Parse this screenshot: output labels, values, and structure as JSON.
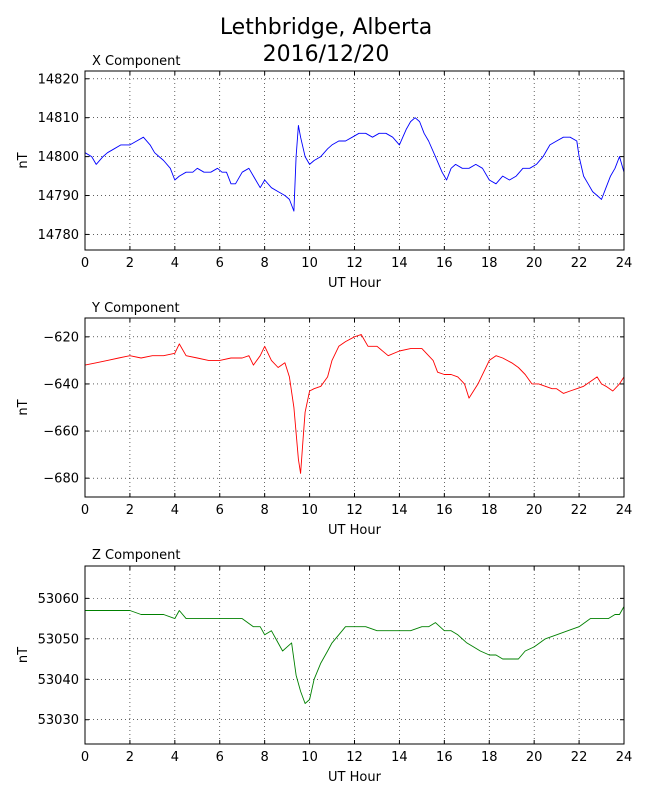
{
  "figure": {
    "title_line1": "Lethbridge, Alberta",
    "title_line2": "2016/12/20"
  },
  "chart_data": [
    {
      "type": "line",
      "title": "X Component",
      "xlabel": "UT Hour",
      "ylabel": "nT",
      "color": "#0000ff",
      "xlim": [
        0,
        24
      ],
      "ylim": [
        14776,
        14822
      ],
      "xticks": [
        0,
        2,
        4,
        6,
        8,
        10,
        12,
        14,
        16,
        18,
        20,
        22,
        24
      ],
      "yticks": [
        14780,
        14790,
        14800,
        14810,
        14820
      ],
      "grid": true,
      "x": [
        0,
        0.3,
        0.5,
        0.8,
        1,
        1.3,
        1.6,
        2,
        2.3,
        2.6,
        2.9,
        3.1,
        3.3,
        3.5,
        3.8,
        4,
        4.2,
        4.5,
        4.8,
        5,
        5.3,
        5.6,
        5.9,
        6.1,
        6.3,
        6.5,
        6.7,
        7,
        7.3,
        7.6,
        7.8,
        8,
        8.3,
        8.6,
        8.9,
        9.1,
        9.3,
        9.4,
        9.5,
        9.6,
        9.8,
        10,
        10.2,
        10.5,
        10.8,
        11,
        11.3,
        11.6,
        11.9,
        12.2,
        12.5,
        12.8,
        13.1,
        13.4,
        13.7,
        14,
        14.3,
        14.5,
        14.7,
        14.9,
        15.1,
        15.3,
        15.6,
        15.9,
        16.1,
        16.3,
        16.5,
        16.8,
        17.1,
        17.4,
        17.7,
        18,
        18.3,
        18.6,
        18.9,
        19.2,
        19.5,
        19.8,
        20.1,
        20.4,
        20.7,
        21,
        21.3,
        21.6,
        21.9,
        22,
        22.2,
        22.4,
        22.6,
        22.8,
        23,
        23.2,
        23.4,
        23.6,
        23.8,
        24
      ],
      "y": [
        14801,
        14800,
        14798,
        14800,
        14801,
        14802,
        14803,
        14803,
        14804,
        14805,
        14803,
        14801,
        14800,
        14799,
        14797,
        14794,
        14795,
        14796,
        14796,
        14797,
        14796,
        14796,
        14797,
        14796,
        14796,
        14793,
        14793,
        14796,
        14797,
        14794,
        14792,
        14794,
        14792,
        14791,
        14790,
        14789,
        14786,
        14800,
        14808,
        14805,
        14800,
        14798,
        14799,
        14800,
        14802,
        14803,
        14804,
        14804,
        14805,
        14806,
        14806,
        14805,
        14806,
        14806,
        14805,
        14803,
        14807,
        14809,
        14810,
        14809,
        14806,
        14804,
        14800,
        14796,
        14794,
        14797,
        14798,
        14797,
        14797,
        14798,
        14797,
        14794,
        14793,
        14795,
        14794,
        14795,
        14797,
        14797,
        14798,
        14800,
        14803,
        14804,
        14805,
        14805,
        14804,
        14800,
        14795,
        14793,
        14791,
        14790,
        14789,
        14792,
        14795,
        14797,
        14800,
        14796
      ]
    },
    {
      "type": "line",
      "title": "Y Component",
      "xlabel": "UT Hour",
      "ylabel": "nT",
      "color": "#ff0000",
      "xlim": [
        0,
        24
      ],
      "ylim": [
        -688,
        -612
      ],
      "xticks": [
        0,
        2,
        4,
        6,
        8,
        10,
        12,
        14,
        16,
        18,
        20,
        22,
        24
      ],
      "yticks": [
        -620,
        -640,
        -660,
        -680
      ],
      "grid": true,
      "x": [
        0,
        0.5,
        1,
        1.5,
        2,
        2.5,
        3,
        3.5,
        4,
        4.2,
        4.5,
        5,
        5.5,
        6,
        6.5,
        7,
        7.3,
        7.5,
        7.8,
        8,
        8.3,
        8.6,
        8.9,
        9.1,
        9.3,
        9.5,
        9.6,
        9.7,
        9.8,
        10,
        10.2,
        10.5,
        10.8,
        11,
        11.3,
        11.6,
        12,
        12.3,
        12.6,
        13,
        13.5,
        14,
        14.5,
        15,
        15.5,
        15.7,
        16,
        16.3,
        16.6,
        16.9,
        17.1,
        17.3,
        17.5,
        17.8,
        18,
        18.3,
        18.6,
        19,
        19.3,
        19.6,
        19.9,
        20.2,
        20.5,
        20.8,
        21,
        21.3,
        21.6,
        21.9,
        22.2,
        22.5,
        22.8,
        23,
        23.2,
        23.5,
        23.8,
        24
      ],
      "y": [
        -632,
        -631,
        -630,
        -629,
        -628,
        -629,
        -628,
        -628,
        -627,
        -623,
        -628,
        -629,
        -630,
        -630,
        -629,
        -629,
        -628,
        -632,
        -628,
        -624,
        -630,
        -633,
        -631,
        -637,
        -650,
        -672,
        -678,
        -665,
        -652,
        -643,
        -642,
        -641,
        -637,
        -630,
        -624,
        -622,
        -620,
        -619,
        -624,
        -624,
        -628,
        -626,
        -625,
        -625,
        -630,
        -635,
        -636,
        -636,
        -637,
        -640,
        -646,
        -643,
        -640,
        -634,
        -630,
        -628,
        -629,
        -631,
        -633,
        -636,
        -640,
        -640,
        -641,
        -642,
        -642,
        -644,
        -643,
        -642,
        -641,
        -639,
        -637,
        -640,
        -641,
        -643,
        -640,
        -637
      ]
    },
    {
      "type": "line",
      "title": "Z Component",
      "xlabel": "UT Hour",
      "ylabel": "nT",
      "color": "#008000",
      "xlim": [
        0,
        24
      ],
      "ylim": [
        53024,
        53068
      ],
      "xticks": [
        0,
        2,
        4,
        6,
        8,
        10,
        12,
        14,
        16,
        18,
        20,
        22,
        24
      ],
      "yticks": [
        53030,
        53040,
        53050,
        53060
      ],
      "grid": true,
      "x": [
        0,
        0.5,
        1,
        1.5,
        2,
        2.5,
        3,
        3.5,
        4,
        4.2,
        4.5,
        5,
        5.5,
        6,
        6.5,
        7,
        7.5,
        7.8,
        8,
        8.3,
        8.6,
        8.8,
        9,
        9.2,
        9.4,
        9.6,
        9.8,
        10,
        10.2,
        10.5,
        10.8,
        11,
        11.3,
        11.6,
        12,
        12.5,
        13,
        13.5,
        14,
        14.5,
        15,
        15.3,
        15.6,
        16,
        16.3,
        16.6,
        17,
        17.3,
        17.6,
        18,
        18.3,
        18.6,
        19,
        19.3,
        19.6,
        20,
        20.5,
        21,
        21.5,
        22,
        22.5,
        23,
        23.3,
        23.6,
        23.8,
        24
      ],
      "y": [
        53057,
        53057,
        53057,
        53057,
        53057,
        53056,
        53056,
        53056,
        53055,
        53057,
        53055,
        53055,
        53055,
        53055,
        53055,
        53055,
        53053,
        53053,
        53051,
        53052,
        53049,
        53047,
        53048,
        53049,
        53041,
        53037,
        53034,
        53035,
        53040,
        53044,
        53047,
        53049,
        53051,
        53053,
        53053,
        53053,
        53052,
        53052,
        53052,
        53052,
        53053,
        53053,
        53054,
        53052,
        53052,
        53051,
        53049,
        53048,
        53047,
        53046,
        53046,
        53045,
        53045,
        53045,
        53047,
        53048,
        53050,
        53051,
        53052,
        53053,
        53055,
        53055,
        53055,
        53056,
        53056,
        53058
      ]
    }
  ]
}
